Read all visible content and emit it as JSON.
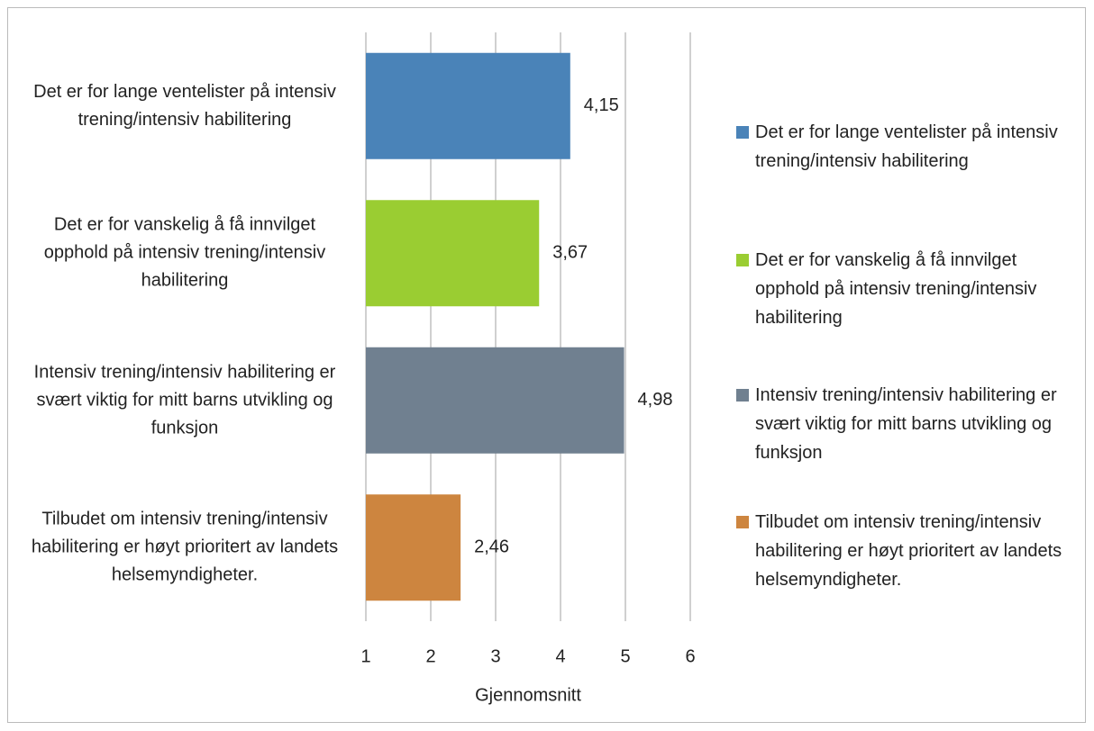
{
  "chart_data": {
    "type": "barh",
    "categories": [
      "Det er for lange ventelister på intensiv trening/intensiv habilitering",
      "Det er for vanskelig å få innvilget opphold på intensiv trening/intensiv habilitering",
      "Intensiv trening/intensiv habilitering er svært viktig for mitt barns utvikling og funksjon",
      "Tilbudet om intensiv trening/intensiv habilitering er høyt prioritert av landets helsemyndigheter."
    ],
    "values": [
      4.15,
      3.67,
      4.98,
      2.46
    ],
    "value_labels": [
      "4,15",
      "3,67",
      "4,98",
      "2,46"
    ],
    "colors": [
      "#4a83b8",
      "#9acd32",
      "#708090",
      "#cd853f"
    ],
    "xlabel": "Gjennomsnitt",
    "xlim": [
      1,
      6
    ],
    "xticks": [
      1,
      2,
      3,
      4,
      5,
      6
    ],
    "grid": true,
    "legend": "right"
  }
}
